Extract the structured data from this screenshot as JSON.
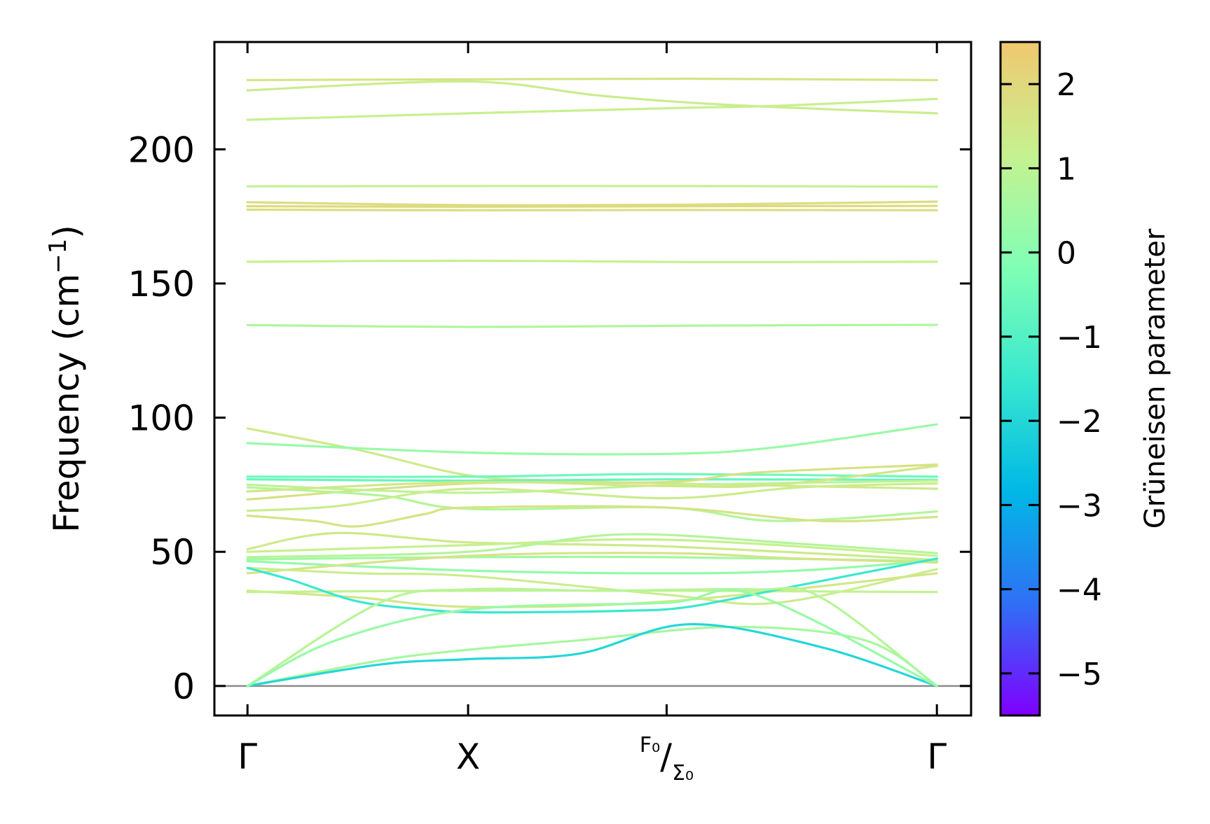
{
  "chart_data": {
    "type": "line",
    "ylabel_main": "Frequency (cm",
    "ylabel_sup": "−1",
    "ylabel_close": ")",
    "ylim": [
      -11,
      240
    ],
    "yticks": [
      0,
      50,
      100,
      150,
      200
    ],
    "ytick_labels": [
      "0",
      "50",
      "100",
      "150",
      "200"
    ],
    "x": [
      0,
      1,
      1.9,
      3.125
    ],
    "xtick_labels": [
      {
        "main": "Γ",
        "sup": "",
        "sub": ""
      },
      {
        "main": "X",
        "sup": "",
        "sub": ""
      },
      {
        "main": "/",
        "sup": "F₀",
        "sub": "Σ₀"
      },
      {
        "main": "Γ",
        "sup": "",
        "sub": ""
      }
    ],
    "xlim": [
      -0.15,
      3.28
    ],
    "zero_line": true,
    "colorbar": {
      "label": "Grüneisen parameter",
      "range": [
        -5.5,
        2.5
      ],
      "ticks": [
        2,
        1,
        0,
        -1,
        -2,
        -3,
        -4,
        -5
      ],
      "tick_labels": [
        "2",
        "1",
        "0",
        "−1",
        "−2",
        "−3",
        "−4",
        "−5"
      ],
      "colormap": "rainbow-truncated",
      "stops": [
        "#7f00ff",
        "#2f70f5",
        "#00b8e6",
        "#39e8cf",
        "#80ffb4",
        "#c6f190",
        "#f0c870"
      ]
    },
    "series": [
      {
        "g": 1.6,
        "values": [
          [
            0,
            225.8
          ],
          [
            1,
            226.1
          ],
          [
            2,
            226.3
          ],
          [
            3.125,
            225.8
          ]
        ]
      },
      {
        "g": 1.3,
        "values": [
          [
            0,
            222
          ],
          [
            1,
            225.3
          ],
          [
            1.6,
            220
          ],
          [
            2.2,
            216.5
          ],
          [
            3.125,
            213.4
          ]
        ]
      },
      {
        "g": 1.2,
        "values": [
          [
            0,
            211
          ],
          [
            1,
            213.4
          ],
          [
            2,
            215.5
          ],
          [
            2.4,
            216.2
          ],
          [
            3.125,
            218.8
          ]
        ]
      },
      {
        "g": 1.1,
        "values": [
          [
            0,
            186.2
          ],
          [
            1,
            186.3
          ],
          [
            2,
            186.3
          ],
          [
            3.125,
            186.1
          ]
        ]
      },
      {
        "g": 1.8,
        "values": [
          [
            0,
            180.3
          ],
          [
            1,
            179.2
          ],
          [
            2,
            179.4
          ],
          [
            3.125,
            180.5
          ]
        ]
      },
      {
        "g": 1.9,
        "values": [
          [
            0,
            178.8
          ],
          [
            1,
            178.6
          ],
          [
            2,
            178.8
          ],
          [
            3.125,
            178.9
          ]
        ]
      },
      {
        "g": 1.8,
        "values": [
          [
            0,
            177.5
          ],
          [
            1,
            177.3
          ],
          [
            2,
            177.4
          ],
          [
            3.125,
            177.3
          ]
        ]
      },
      {
        "g": 1.2,
        "values": [
          [
            0,
            158.1
          ],
          [
            1,
            158.5
          ],
          [
            2,
            158.0
          ],
          [
            3.125,
            158.1
          ]
        ]
      },
      {
        "g": 0.7,
        "values": [
          [
            0,
            134.5
          ],
          [
            1,
            133.8
          ],
          [
            2,
            134.3
          ],
          [
            3.125,
            134.6
          ]
        ]
      },
      {
        "g": 1.4,
        "values": [
          [
            0,
            96
          ],
          [
            0.5,
            88
          ],
          [
            1,
            78.5
          ],
          [
            1.4,
            76.5
          ],
          [
            1.9,
            75.5
          ],
          [
            3.125,
            73.5
          ]
        ]
      },
      {
        "g": 0.3,
        "values": [
          [
            0,
            90.5
          ],
          [
            1,
            87
          ],
          [
            1.9,
            86.5
          ],
          [
            2.4,
            89
          ],
          [
            3.125,
            97.5
          ]
        ]
      },
      {
        "g": -0.5,
        "values": [
          [
            0,
            78
          ],
          [
            1,
            78
          ],
          [
            1.9,
            79
          ],
          [
            3.125,
            78
          ]
        ]
      },
      {
        "g": -0.7,
        "values": [
          [
            0,
            77
          ],
          [
            1,
            76.5
          ],
          [
            1.9,
            77
          ],
          [
            3.125,
            76.8
          ]
        ]
      },
      {
        "g": 1.7,
        "values": [
          [
            0,
            69.5
          ],
          [
            1,
            75.5
          ],
          [
            1.9,
            76
          ],
          [
            2.3,
            79.5
          ],
          [
            3.125,
            82.5
          ]
        ]
      },
      {
        "g": 1.0,
        "values": [
          [
            0,
            75
          ],
          [
            1,
            72
          ],
          [
            1.9,
            74.8
          ],
          [
            3.125,
            76.5
          ]
        ]
      },
      {
        "g": 0.8,
        "values": [
          [
            0,
            74
          ],
          [
            0.6,
            71
          ],
          [
            1,
            66
          ],
          [
            1.9,
            66.5
          ],
          [
            2.4,
            61.5
          ],
          [
            3.125,
            65
          ]
        ]
      },
      {
        "g": 1.5,
        "values": [
          [
            0,
            72.5
          ],
          [
            1,
            76
          ],
          [
            1.9,
            74.5
          ],
          [
            2.4,
            75
          ],
          [
            3.125,
            82
          ]
        ]
      },
      {
        "g": 1.3,
        "values": [
          [
            0,
            65.3
          ],
          [
            0.4,
            67
          ],
          [
            1,
            73.5
          ],
          [
            1.9,
            70
          ],
          [
            2.5,
            74
          ],
          [
            3.125,
            75.5
          ]
        ]
      },
      {
        "g": 1.6,
        "values": [
          [
            0,
            63.5
          ],
          [
            0.3,
            61.5
          ],
          [
            0.5,
            59.5
          ],
          [
            0.8,
            64
          ],
          [
            1,
            66.5
          ],
          [
            1.9,
            66.5
          ],
          [
            2.6,
            61.5
          ],
          [
            3.125,
            63
          ]
        ]
      },
      {
        "g": 1.4,
        "values": [
          [
            0,
            51
          ],
          [
            0.4,
            57
          ],
          [
            1,
            53.5
          ],
          [
            1.9,
            52
          ],
          [
            3.125,
            47
          ]
        ]
      },
      {
        "g": 1.2,
        "values": [
          [
            0,
            50
          ],
          [
            1,
            52.5
          ],
          [
            1.9,
            54.5
          ],
          [
            3.125,
            48.5
          ]
        ]
      },
      {
        "g": 0.8,
        "values": [
          [
            0,
            48
          ],
          [
            1,
            50
          ],
          [
            1.7,
            56.5
          ],
          [
            2.5,
            53
          ],
          [
            3.125,
            49.5
          ]
        ]
      },
      {
        "g": 0.5,
        "values": [
          [
            0,
            47.2
          ],
          [
            1,
            48
          ],
          [
            1.9,
            48
          ],
          [
            3.125,
            46.5
          ]
        ]
      },
      {
        "g": 0.2,
        "values": [
          [
            0,
            46.5
          ],
          [
            1,
            43
          ],
          [
            1.9,
            42
          ],
          [
            2.5,
            43
          ],
          [
            3.125,
            46.8
          ]
        ]
      },
      {
        "g": 1.6,
        "values": [
          [
            0,
            42
          ],
          [
            1,
            48.5
          ],
          [
            1.9,
            49.5
          ],
          [
            2.5,
            47.5
          ],
          [
            3.125,
            46
          ]
        ]
      },
      {
        "g": 1.3,
        "values": [
          [
            0,
            44
          ],
          [
            0.5,
            42
          ],
          [
            1,
            41
          ],
          [
            1.9,
            34
          ],
          [
            2.4,
            31
          ],
          [
            3.125,
            43.5
          ]
        ]
      },
      {
        "g": 1.5,
        "values": [
          [
            0,
            35.5
          ],
          [
            0.5,
            33
          ],
          [
            1,
            29.5
          ],
          [
            1.9,
            31.5
          ],
          [
            3.125,
            42
          ]
        ]
      },
      {
        "g": 1.1,
        "values": [
          [
            0,
            35
          ],
          [
            1,
            35.5
          ],
          [
            1.9,
            35.5
          ],
          [
            3.125,
            35
          ]
        ]
      },
      {
        "g": -1.5,
        "values": [
          [
            0,
            44
          ],
          [
            0.2,
            39.5
          ],
          [
            0.5,
            31.5
          ],
          [
            0.8,
            28.5
          ],
          [
            1,
            27.5
          ],
          [
            1.3,
            27.5
          ],
          [
            1.7,
            28
          ],
          [
            2,
            29.5
          ],
          [
            2.5,
            37.5
          ],
          [
            3.125,
            47.5
          ]
        ]
      },
      {
        "g": 0.9,
        "values": [
          [
            0,
            0
          ],
          [
            0.6,
            31
          ],
          [
            1,
            36
          ],
          [
            1.6,
            35.5
          ],
          [
            2.3,
            36
          ],
          [
            2.6,
            33
          ],
          [
            3.125,
            0
          ]
        ]
      },
      {
        "g": 0.6,
        "values": [
          [
            0,
            0
          ],
          [
            0.6,
            9.5
          ],
          [
            1,
            13.5
          ],
          [
            1.5,
            17
          ],
          [
            2.2,
            22
          ],
          [
            2.8,
            17
          ],
          [
            3.125,
            0
          ]
        ]
      },
      {
        "g": -2.0,
        "values": [
          [
            0,
            0
          ],
          [
            0.6,
            8
          ],
          [
            1,
            10
          ],
          [
            1.5,
            12
          ],
          [
            2,
            23
          ],
          [
            2.6,
            14.5
          ],
          [
            3.125,
            0
          ]
        ]
      },
      {
        "g": 0.3,
        "values": [
          [
            0,
            0
          ],
          [
            0.4,
            17
          ],
          [
            1,
            28.5
          ],
          [
            1.9,
            31
          ],
          [
            2.3,
            34
          ],
          [
            3.125,
            0
          ]
        ]
      }
    ]
  }
}
